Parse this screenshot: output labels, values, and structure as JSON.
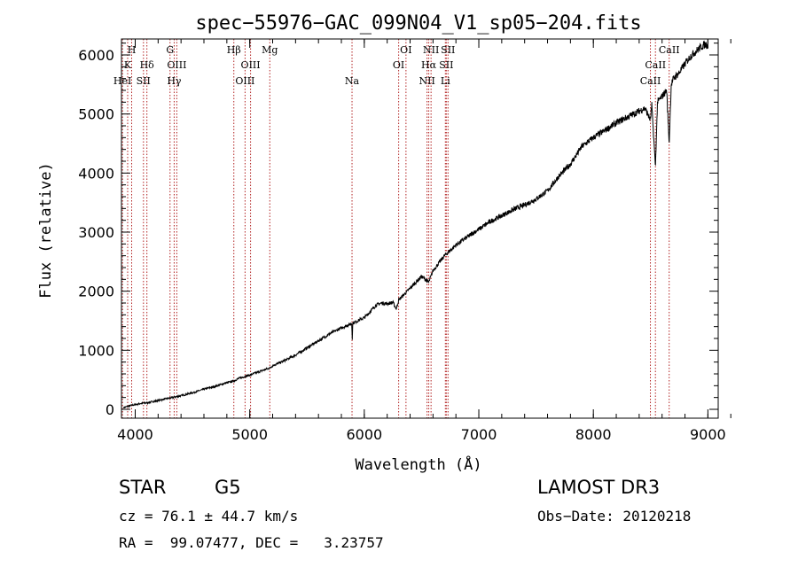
{
  "chart_data": {
    "type": "line",
    "title": "spec−55976−GAC_099N04_V1_sp05−204.fits",
    "xlabel": "Wavelength (Å)",
    "ylabel": "Flux (relative)",
    "xlim": [
      3880,
      9090
    ],
    "ylim": [
      -150,
      6270
    ],
    "x_ticks": [
      4000,
      5000,
      6000,
      7000,
      8000,
      9000
    ],
    "x_tick_labels": [
      "4000",
      "5000",
      "6000",
      "7000",
      "8000",
      "9000"
    ],
    "y_ticks": [
      0,
      1000,
      2000,
      3000,
      4000,
      5000,
      6000
    ],
    "y_tick_labels": [
      "0",
      "1000",
      "2000",
      "3000",
      "4000",
      "5000",
      "6000"
    ],
    "grid": false,
    "series": [
      {
        "name": "spectrum",
        "x": [
          3900,
          3950,
          4000,
          4050,
          4100,
          4150,
          4200,
          4300,
          4350,
          4400,
          4500,
          4600,
          4700,
          4800,
          4861,
          4900,
          5000,
          5100,
          5175,
          5200,
          5300,
          5400,
          5500,
          5600,
          5700,
          5800,
          5890,
          5895,
          5900,
          6000,
          6050,
          6100,
          6150,
          6200,
          6250,
          6280,
          6300,
          6400,
          6500,
          6563,
          6600,
          6700,
          6800,
          6900,
          7000,
          7100,
          7200,
          7300,
          7400,
          7500,
          7600,
          7700,
          7800,
          7900,
          8000,
          8100,
          8200,
          8300,
          8400,
          8450,
          8498,
          8510,
          8542,
          8560,
          8600,
          8640,
          8662,
          8680,
          8700,
          8750,
          8800,
          8850,
          8900,
          8950,
          8980,
          9000
        ],
        "y": [
          30,
          60,
          80,
          100,
          110,
          130,
          150,
          190,
          210,
          230,
          280,
          340,
          390,
          450,
          480,
          520,
          580,
          650,
          700,
          740,
          820,
          920,
          1040,
          1160,
          1280,
          1380,
          1450,
          1200,
          1460,
          1550,
          1650,
          1760,
          1800,
          1790,
          1810,
          1700,
          1850,
          2050,
          2250,
          2150,
          2350,
          2600,
          2780,
          2920,
          3050,
          3180,
          3280,
          3380,
          3460,
          3560,
          3700,
          3950,
          4150,
          4450,
          4600,
          4720,
          4850,
          4950,
          5050,
          5100,
          4900,
          5150,
          4100,
          5200,
          5300,
          5400,
          4500,
          5500,
          5600,
          5700,
          5850,
          5980,
          6070,
          6150,
          6180,
          6160
        ]
      }
    ],
    "lines": [
      {
        "wavelength": 3934,
        "label": "K",
        "row": 2
      },
      {
        "wavelength": 3969,
        "label": "H",
        "row": 1
      },
      {
        "wavelength": 3889,
        "label": "HeI",
        "row": 3
      },
      {
        "wavelength": 4072,
        "label": "SII",
        "row": 3
      },
      {
        "wavelength": 4102,
        "label": "Hδ",
        "row": 2
      },
      {
        "wavelength": 4304,
        "label": "G",
        "row": 1
      },
      {
        "wavelength": 4340,
        "label": "Hγ",
        "row": 3
      },
      {
        "wavelength": 4363,
        "label": "OIII",
        "row": 2
      },
      {
        "wavelength": 4861,
        "label": "Hβ",
        "row": 1
      },
      {
        "wavelength": 4959,
        "label": "OIII",
        "row": 3
      },
      {
        "wavelength": 5007,
        "label": "OIII",
        "row": 2
      },
      {
        "wavelength": 5175,
        "label": "Mg",
        "row": 1
      },
      {
        "wavelength": 5893,
        "label": "Na",
        "row": 3
      },
      {
        "wavelength": 6300,
        "label": "OI",
        "row": 2
      },
      {
        "wavelength": 6364,
        "label": "OI",
        "row": 1
      },
      {
        "wavelength": 6548,
        "label": "NII",
        "row": 3
      },
      {
        "wavelength": 6563,
        "label": "Hα",
        "row": 2
      },
      {
        "wavelength": 6583,
        "label": "NII",
        "row": 1
      },
      {
        "wavelength": 6708,
        "label": "Li",
        "row": 3
      },
      {
        "wavelength": 6716,
        "label": "SII",
        "row": 2
      },
      {
        "wavelength": 6731,
        "label": "SII",
        "row": 1
      },
      {
        "wavelength": 8498,
        "label": "CaII",
        "row": 3
      },
      {
        "wavelength": 8542,
        "label": "CaII",
        "row": 2
      },
      {
        "wavelength": 8662,
        "label": "CaII",
        "row": 1
      }
    ]
  },
  "footer": {
    "object_class": "STAR",
    "subclass": "G5",
    "survey": "LAMOST DR3",
    "cz_text": "cz = 76.1 ± 44.7 km/s",
    "obs_date_text": "Obs−Date: 20120218",
    "coords_text": "RA =  99.07477, DEC =   3.23757"
  },
  "colors": {
    "line_marker": "#b22222",
    "spectrum": "#000000",
    "axis": "#000000"
  }
}
